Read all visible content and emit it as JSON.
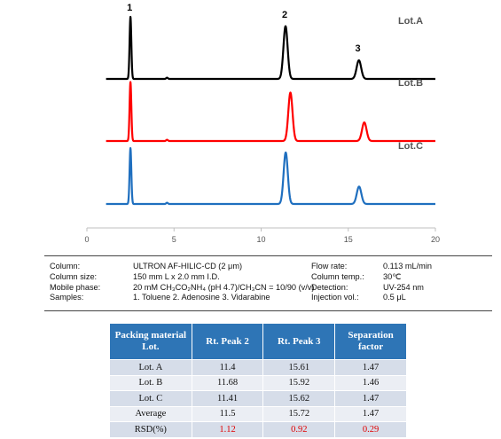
{
  "chart_data": {
    "type": "line",
    "title": "",
    "xlabel": "",
    "ylabel": "",
    "xlim": [
      0,
      20
    ],
    "x_ticks": [
      "0",
      "5",
      "10",
      "15",
      "20"
    ],
    "grid": false,
    "peak_labels": [
      {
        "label": "1",
        "x": 2.5
      },
      {
        "label": "2",
        "x": 11.4
      },
      {
        "label": "3",
        "x": 15.6
      }
    ],
    "series": [
      {
        "name": "Lot.A",
        "color": "#000000",
        "peaks": [
          {
            "x": 2.5,
            "height": 1.0
          },
          {
            "x": 4.6,
            "height": 0.02
          },
          {
            "x": 11.4,
            "height": 0.85
          },
          {
            "x": 15.61,
            "height": 0.3
          }
        ]
      },
      {
        "name": "Lot.B",
        "color": "#ff0000",
        "peaks": [
          {
            "x": 2.5,
            "height": 0.95
          },
          {
            "x": 4.6,
            "height": 0.02
          },
          {
            "x": 11.68,
            "height": 0.78
          },
          {
            "x": 15.92,
            "height": 0.3
          }
        ]
      },
      {
        "name": "Lot.C",
        "color": "#1f6fbf",
        "peaks": [
          {
            "x": 2.5,
            "height": 0.9
          },
          {
            "x": 4.6,
            "height": 0.02
          },
          {
            "x": 11.41,
            "height": 0.83
          },
          {
            "x": 15.62,
            "height": 0.28
          }
        ]
      }
    ]
  },
  "conditions": [
    {
      "label1": "Column:",
      "value1": "ULTRON AF-HILIC-CD (2 μm)",
      "label2": "Flow rate:",
      "value2": "0.113 mL/min"
    },
    {
      "label1": "Column size:",
      "value1": "150 mm L x 2.0 mm I.D.",
      "label2": "Column temp.:",
      "value2": "30℃"
    },
    {
      "label1": "Mobile phase:",
      "value1": "20 mM CH₃CO₂NH₄ (pH 4.7)/CH₃CN = 10/90 (v/v)",
      "label2": "Detection:",
      "value2": "UV-254 nm"
    },
    {
      "label1": "Samples:",
      "value1": "1. Toluene  2. Adenosine  3. Vidarabine",
      "label2": "Injection vol.:",
      "value2": "0.5 μL"
    }
  ],
  "table": {
    "headers": [
      "Packing material Lot.",
      "Rt. Peak 2",
      "Rt. Peak 3",
      "Separation factor"
    ],
    "rows": [
      [
        "Lot. A",
        "11.4",
        "15.61",
        "1.47"
      ],
      [
        "Lot. B",
        "11.68",
        "15.92",
        "1.46"
      ],
      [
        "Lot. C",
        "11.41",
        "15.62",
        "1.47"
      ],
      [
        "Average",
        "11.5",
        "15.72",
        "1.47"
      ],
      [
        "RSD(%)",
        "1.12",
        "0.92",
        "0.29"
      ]
    ],
    "red_row_label": "RSD(%)"
  }
}
